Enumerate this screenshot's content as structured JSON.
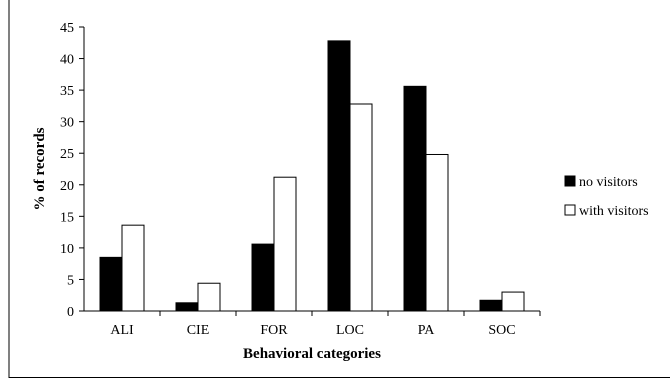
{
  "chart_data": {
    "type": "bar",
    "title": "",
    "xlabel": "Behavioral categories",
    "ylabel": "% of records",
    "categories": [
      "ALI",
      "CIE",
      "FOR",
      "LOC",
      "PA",
      "SOC"
    ],
    "series": [
      {
        "name": "no visitors",
        "values": [
          8.5,
          1.3,
          10.6,
          42.8,
          35.6,
          1.7
        ],
        "color": "#000000"
      },
      {
        "name": "with visitors",
        "values": [
          13.6,
          4.4,
          21.2,
          32.8,
          24.8,
          3.0
        ],
        "color": "#ffffff"
      }
    ],
    "ylim": [
      0,
      45
    ],
    "yticks": [
      "0",
      "5",
      "10",
      "15",
      "20",
      "25",
      "30",
      "35",
      "40",
      "45"
    ],
    "grid": false,
    "legend_position": "right"
  }
}
